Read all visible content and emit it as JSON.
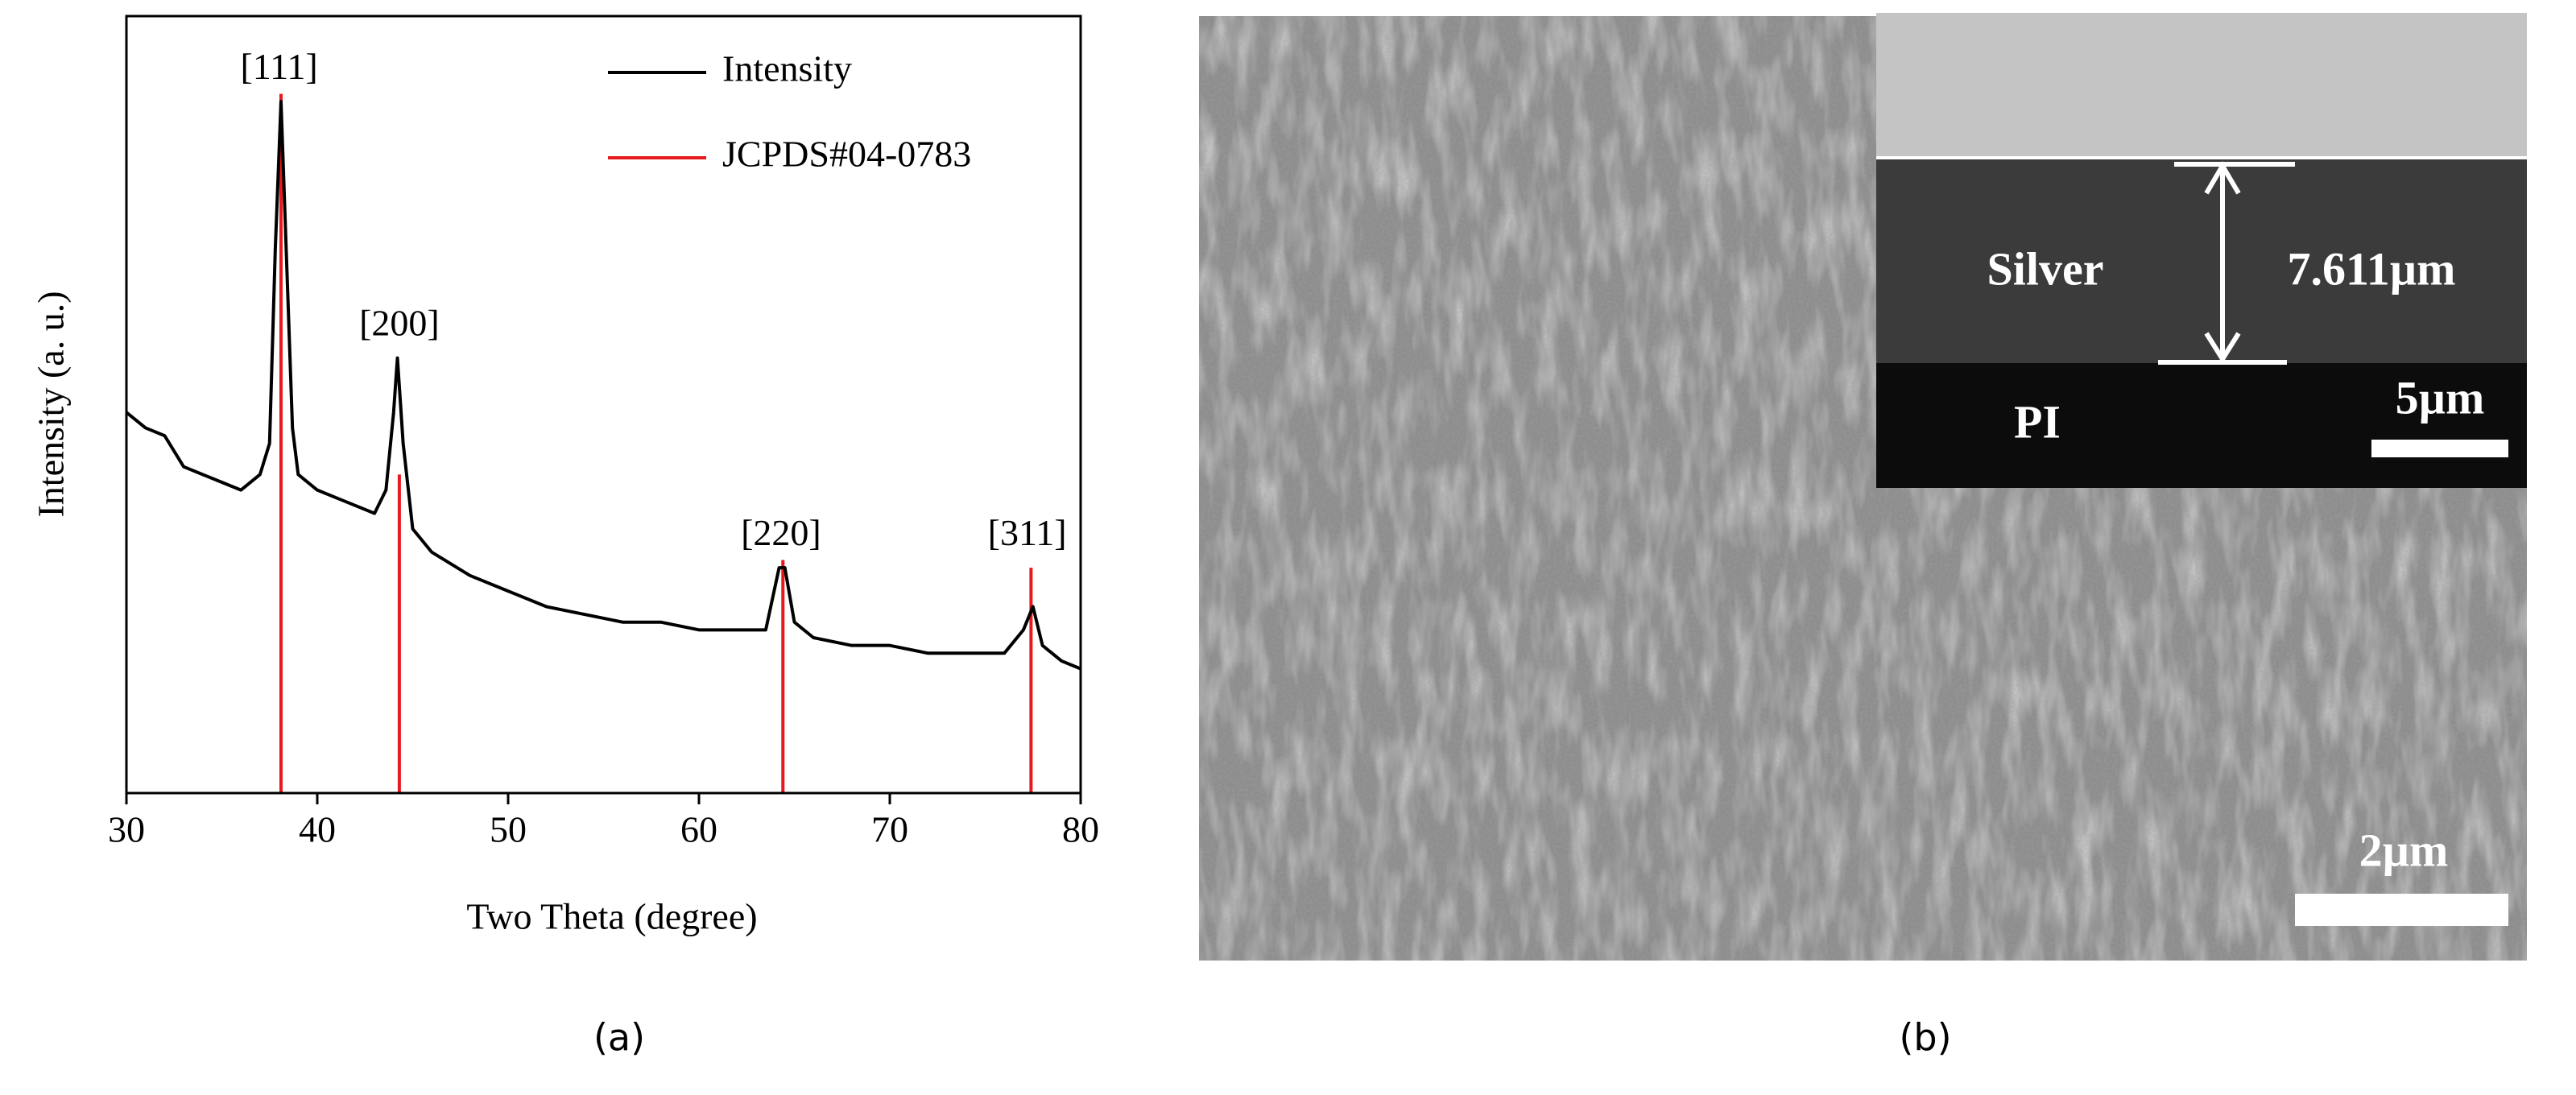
{
  "chart_data": {
    "type": "line",
    "xlabel": "Two Theta (degree)",
    "ylabel": "Intensity (a. u.)",
    "xlim": [
      30,
      80
    ],
    "xticks": [
      30,
      40,
      50,
      60,
      70,
      80
    ],
    "ylim": [
      0,
      100
    ],
    "legend": "top-right",
    "series": [
      {
        "name": "Intensity",
        "color": "#000000",
        "mark": "line",
        "x": [
          30,
          31,
          32,
          33,
          34,
          35,
          36,
          37,
          37.5,
          37.8,
          38.1,
          38.4,
          38.7,
          39,
          40,
          41,
          42,
          43,
          43.6,
          44,
          44.2,
          44.5,
          45,
          46,
          48,
          50,
          52,
          54,
          56,
          58,
          60,
          62,
          63.5,
          64.2,
          64.5,
          65,
          66,
          68,
          70,
          72,
          74,
          76,
          77,
          77.5,
          78,
          79,
          80
        ],
        "values": [
          49,
          47,
          46,
          42,
          41,
          40,
          39,
          41,
          45,
          70,
          89,
          68,
          47,
          41,
          39,
          38,
          37,
          36,
          39,
          49,
          56,
          45,
          34,
          31,
          28,
          26,
          24,
          23,
          22,
          22,
          21,
          21,
          21,
          29,
          29,
          22,
          20,
          19,
          19,
          18,
          18,
          18,
          21,
          24,
          19,
          17,
          16
        ]
      },
      {
        "name": "JCPDS#04-0783",
        "color": "#e8191e",
        "mark": "stem",
        "x": [
          38.1,
          44.3,
          64.4,
          77.4
        ],
        "values": [
          90,
          41,
          30,
          29
        ]
      }
    ],
    "annotations": [
      {
        "text": "[111]",
        "x": 38,
        "y": 93
      },
      {
        "text": "[200]",
        "x": 44.3,
        "y": 60
      },
      {
        "text": "[220]",
        "x": 64.3,
        "y": 33
      },
      {
        "text": "[311]",
        "x": 77.2,
        "y": 33
      }
    ],
    "caption": "(a)"
  },
  "image_panel": {
    "caption": "(b)",
    "inset_layer": "Silver",
    "inset_thickness": "7.611µm",
    "inset_substrate": "PI",
    "inset_scale": "5µm",
    "scale": "2µm"
  }
}
